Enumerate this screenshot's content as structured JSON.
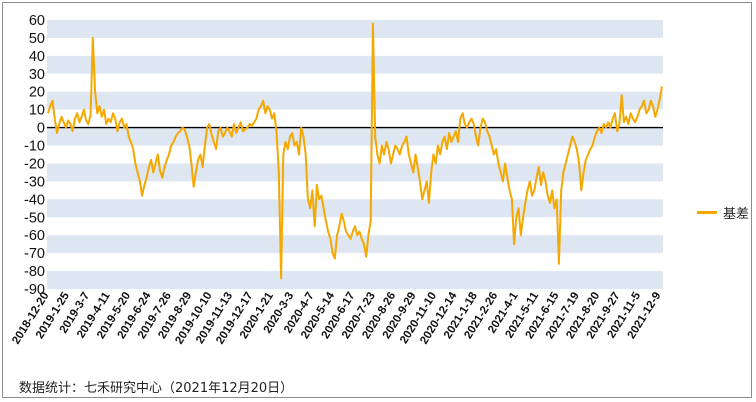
{
  "chart_data": {
    "type": "line",
    "title": "",
    "xlabel": "",
    "ylabel": "",
    "ylim": [
      -90,
      60
    ],
    "yticks": [
      60,
      50,
      40,
      30,
      20,
      10,
      0,
      -10,
      -20,
      -30,
      -40,
      -50,
      -60,
      -70,
      -80,
      -90
    ],
    "x_tick_labels": [
      "2018-12-20",
      "2019-1-25",
      "2019-3-7",
      "2019-4-11",
      "2019-5-20",
      "2019-6-24",
      "2019-7-26",
      "2019-8-29",
      "2019-10-10",
      "2019-11-13",
      "2019-12-17",
      "2020-1-21",
      "2020-3-3",
      "2020-4-7",
      "2020-5-14",
      "2020-6-17",
      "2020-7-23",
      "2020-8-26",
      "2020-9-29",
      "2020-11-10",
      "2020-12-14",
      "2021-1-18",
      "2021-2-26",
      "2021-4-1",
      "2021-5-11",
      "2021-6-15",
      "2021-7-19",
      "2021-8-20",
      "2021-9-27",
      "2021-11-5",
      "2021-12-9"
    ],
    "grid": "horizontal bands",
    "legend_position": "right",
    "series": [
      {
        "name": "基差",
        "color": "#f5a800",
        "x_start": "2018-12-20",
        "x_end": "2021-12-20",
        "values": [
          8,
          12,
          15,
          5,
          -3,
          2,
          6,
          3,
          0,
          4,
          2,
          -2,
          5,
          8,
          3,
          6,
          10,
          4,
          2,
          7,
          50,
          20,
          8,
          12,
          6,
          10,
          2,
          5,
          3,
          8,
          5,
          -2,
          3,
          5,
          0,
          2,
          -5,
          -8,
          -12,
          -20,
          -25,
          -30,
          -38,
          -32,
          -28,
          -22,
          -18,
          -25,
          -20,
          -15,
          -24,
          -28,
          -22,
          -18,
          -15,
          -10,
          -8,
          -5,
          -3,
          -2,
          0,
          -1,
          -5,
          -10,
          -20,
          -33,
          -25,
          -18,
          -15,
          -22,
          -10,
          0,
          2,
          -4,
          -8,
          -12,
          -2,
          0,
          -5,
          -3,
          0,
          -2,
          -5,
          2,
          -3,
          0,
          3,
          -2,
          -1,
          0,
          2,
          1,
          3,
          5,
          10,
          12,
          15,
          8,
          12,
          10,
          5,
          8,
          -3,
          -25,
          -84,
          -15,
          -8,
          -12,
          -5,
          -3,
          -10,
          -8,
          -15,
          0,
          -5,
          -15,
          -40,
          -45,
          -35,
          -55,
          -32,
          -40,
          -38,
          -45,
          -52,
          -58,
          -62,
          -70,
          -73,
          -60,
          -55,
          -48,
          -52,
          -58,
          -60,
          -62,
          -58,
          -55,
          -60,
          -58,
          -62,
          -65,
          -72,
          -60,
          -52,
          58,
          -5,
          -15,
          -20,
          -10,
          -15,
          -8,
          -12,
          -20,
          -15,
          -10,
          -12,
          -15,
          -10,
          -8,
          -5,
          -15,
          -20,
          -25,
          -15,
          -22,
          -30,
          -40,
          -35,
          -30,
          -42,
          -25,
          -15,
          -20,
          -10,
          -15,
          -8,
          -5,
          -12,
          -3,
          -8,
          -5,
          -2,
          -8,
          5,
          8,
          2,
          0,
          3,
          5,
          2,
          -5,
          -10,
          0,
          5,
          3,
          -2,
          -5,
          -10,
          -15,
          -12,
          -20,
          -25,
          -30,
          -20,
          -28,
          -35,
          -40,
          -65,
          -50,
          -45,
          -60,
          -50,
          -42,
          -35,
          -30,
          -38,
          -35,
          -28,
          -22,
          -32,
          -25,
          -30,
          -38,
          -42,
          -35,
          -45,
          -40,
          -76,
          -35,
          -25,
          -20,
          -15,
          -10,
          -5,
          -8,
          -12,
          -20,
          -35,
          -25,
          -18,
          -15,
          -12,
          -10,
          -5,
          -2,
          0,
          -3,
          2,
          0,
          3,
          0,
          5,
          8,
          -2,
          2,
          18,
          3,
          6,
          2,
          8,
          5,
          3,
          6,
          10,
          12,
          15,
          8,
          10,
          15,
          12,
          6,
          10,
          16,
          23
        ]
      }
    ]
  },
  "legend": {
    "label": "基差",
    "color": "#f5a800"
  },
  "source_note": "数据统计：七禾研究中心（2021年12月20日）"
}
